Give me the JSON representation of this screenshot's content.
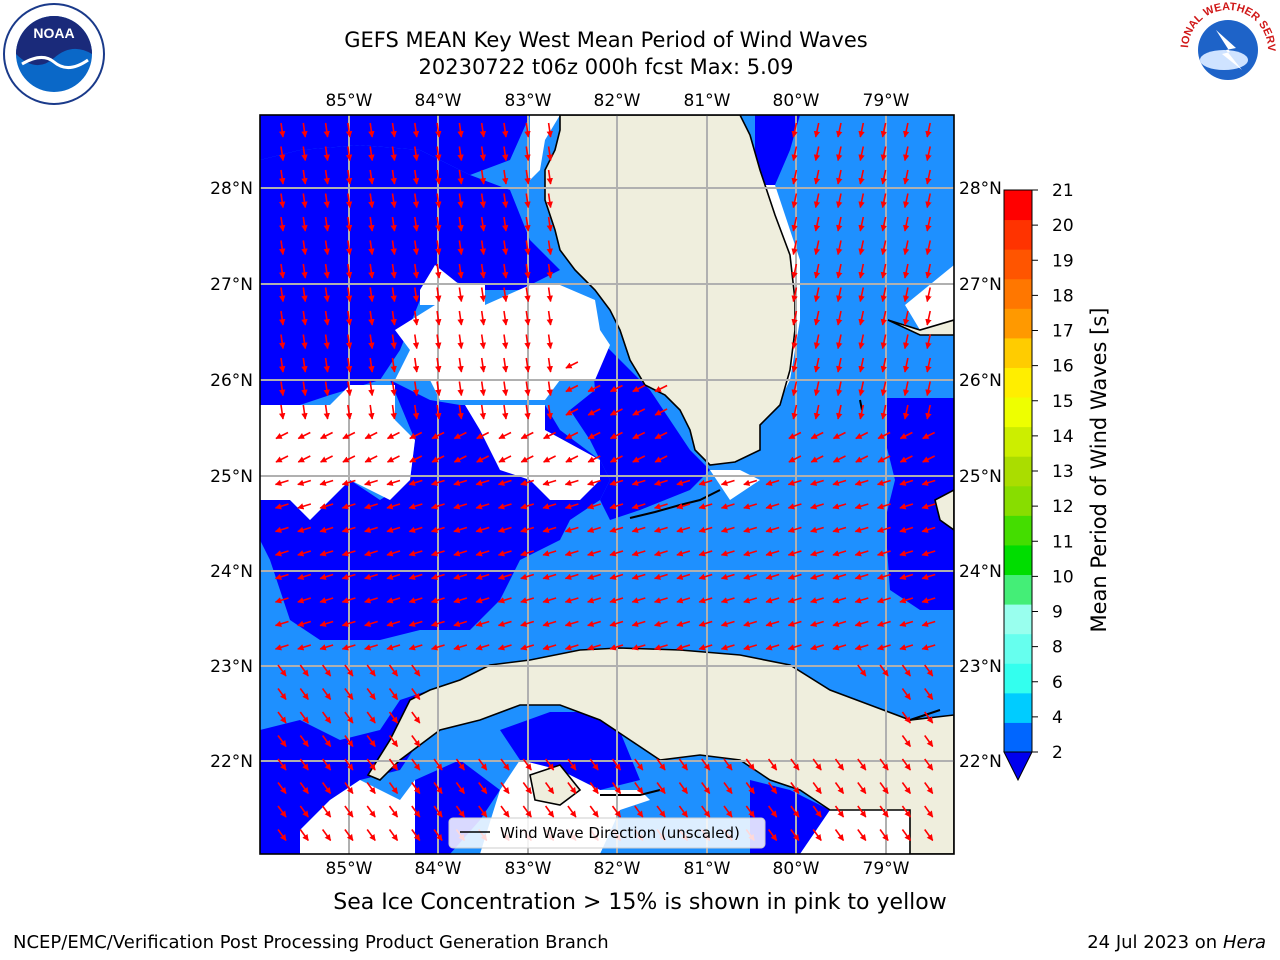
{
  "title": {
    "line1": "GEFS MEAN Key West Mean Period of Wind Waves",
    "line2": "20230722 t06z 000h fcst   Max: 5.09"
  },
  "subtitle": "Sea Ice Concentration > 15% is shown in pink to yellow",
  "footer": {
    "left": "NCEP/EMC/Verification Post Processing Product Generation Branch",
    "right_date": "24 Jul 2023 on ",
    "right_host": "Hera"
  },
  "logos": {
    "left_icon": "noaa-logo",
    "right_icon": "nws-logo",
    "left_text": "NOAA",
    "right_text": "NATIONAL WEATHER SERVICE"
  },
  "chart_data": {
    "type": "heatmap",
    "variable": "Mean Period of Wind Waves",
    "units": "s",
    "max_value": 5.09,
    "x_ticks": [
      "85°W",
      "84°W",
      "83°W",
      "82°W",
      "81°W",
      "80°W",
      "79°W"
    ],
    "x_values": [
      -85,
      -84,
      -83,
      -82,
      -81,
      -80,
      -79
    ],
    "y_ticks": [
      "28°N",
      "27°N",
      "26°N",
      "25°N",
      "24°N",
      "23°N",
      "22°N"
    ],
    "y_values": [
      28,
      27,
      26,
      25,
      24,
      23,
      22
    ],
    "xlim": [
      -86,
      -78.3
    ],
    "ylim": [
      21.1,
      28.8
    ],
    "grid": true,
    "legend": {
      "label": "Wind Wave Direction (unscaled)",
      "placement": "bottom-center"
    },
    "colorbar": {
      "label": "Mean Period of Wind Waves [s]",
      "tick_labels": [
        "2",
        "4",
        "6",
        "8",
        "9",
        "10",
        "11",
        "12",
        "13",
        "14",
        "15",
        "16",
        "17",
        "18",
        "19",
        "20",
        "21"
      ],
      "colors": [
        "#0066ff",
        "#00ccff",
        "#33ffee",
        "#66ffee",
        "#99ffee",
        "#44ee77",
        "#00dd00",
        "#44dd00",
        "#88dd00",
        "#aadd00",
        "#ccee00",
        "#eeff00",
        "#ffee00",
        "#ffcc00",
        "#ff9900",
        "#ff7700",
        "#ff5500",
        "#ff3300",
        "#ff0000"
      ],
      "extend": "min",
      "extend_color": "#0000ee"
    },
    "field_colors": {
      "lt2": "#0000ff",
      "2to4": "#1e90ff",
      "no_data": "#ffffff",
      "land": "#efeedd",
      "arrow": "#ff0000",
      "grid": "#b0b0b0"
    }
  }
}
